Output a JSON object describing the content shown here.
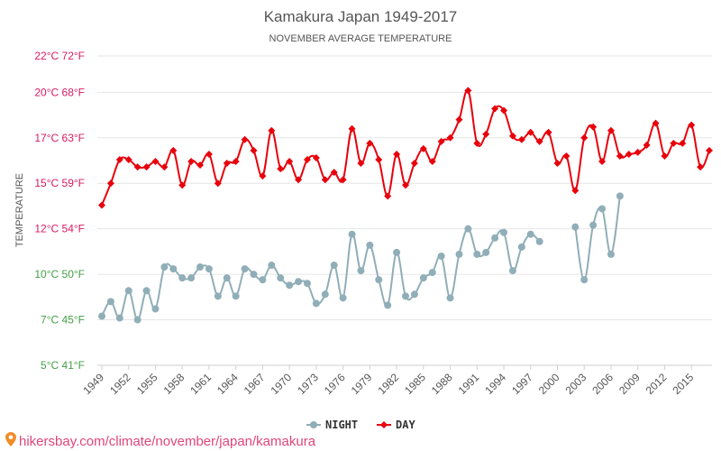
{
  "chart_data": {
    "type": "line",
    "title": "Kamakura Japan 1949-2017",
    "subtitle": "NOVEMBER AVERAGE TEMPERATURE",
    "ylabel": "TEMPERATURE",
    "ylim": [
      5,
      22
    ],
    "yticks": [
      {
        "value": 22,
        "label": "22°C 72°F",
        "color": "#d81b60"
      },
      {
        "value": 20,
        "label": "20°C 68°F",
        "color": "#d81b60"
      },
      {
        "value": 17.5,
        "label": "17°C 63°F",
        "color": "#d81b60"
      },
      {
        "value": 15,
        "label": "15°C 59°F",
        "color": "#d81b60"
      },
      {
        "value": 12.5,
        "label": "12°C 54°F",
        "color": "#d81b60"
      },
      {
        "value": 10,
        "label": "10°C 50°F",
        "color": "#43a047"
      },
      {
        "value": 7.5,
        "label": "7°C 45°F",
        "color": "#43a047"
      },
      {
        "value": 5,
        "label": "5°C 41°F",
        "color": "#43a047"
      }
    ],
    "xticks": [
      "1949",
      "1952",
      "1955",
      "1958",
      "1961",
      "1964",
      "1967",
      "1970",
      "1973",
      "1976",
      "1979",
      "1982",
      "1985",
      "1988",
      "1991",
      "1994",
      "1997",
      "2000",
      "2003",
      "2006",
      "2009",
      "2012",
      "2015"
    ],
    "x": [
      1949,
      1950,
      1951,
      1952,
      1953,
      1954,
      1955,
      1956,
      1957,
      1958,
      1959,
      1960,
      1961,
      1962,
      1963,
      1964,
      1965,
      1966,
      1967,
      1968,
      1969,
      1970,
      1971,
      1972,
      1973,
      1974,
      1975,
      1976,
      1977,
      1978,
      1979,
      1980,
      1981,
      1982,
      1983,
      1984,
      1985,
      1986,
      1987,
      1988,
      1989,
      1990,
      1991,
      1992,
      1993,
      1994,
      1995,
      1996,
      1997,
      1998,
      1999,
      2000,
      2001,
      2002,
      2003,
      2004,
      2005,
      2006,
      2007,
      2008,
      2009,
      2010,
      2011,
      2012,
      2013,
      2014,
      2015,
      2016,
      2017
    ],
    "series": [
      {
        "name": "NIGHT",
        "color": "#90aeb8",
        "values": [
          7.7,
          8.5,
          7.6,
          9.1,
          7.5,
          9.1,
          8.1,
          10.4,
          10.3,
          9.8,
          9.8,
          10.4,
          10.3,
          8.8,
          9.8,
          8.8,
          10.3,
          10.0,
          9.7,
          10.5,
          9.8,
          9.4,
          9.6,
          9.5,
          8.4,
          8.9,
          10.5,
          8.7,
          12.2,
          10.2,
          11.6,
          9.7,
          8.3,
          11.2,
          8.8,
          8.9,
          9.8,
          10.1,
          11.0,
          8.7,
          11.1,
          12.5,
          11.1,
          11.2,
          12.0,
          12.3,
          10.2,
          11.5,
          12.2,
          11.8,
          null,
          null,
          null,
          12.6,
          9.7,
          12.7,
          13.6,
          11.1,
          14.3,
          null,
          null,
          null,
          null,
          null,
          null,
          null,
          null,
          null,
          null
        ]
      },
      {
        "name": "DAY",
        "color": "#e8000b",
        "values": [
          13.8,
          15.0,
          16.3,
          16.3,
          15.9,
          15.9,
          16.2,
          15.9,
          16.8,
          14.9,
          16.2,
          16.0,
          16.6,
          15.0,
          16.1,
          16.2,
          17.4,
          16.8,
          15.4,
          17.9,
          15.8,
          16.2,
          15.2,
          16.3,
          16.4,
          15.2,
          15.6,
          15.2,
          18.0,
          16.1,
          17.2,
          16.3,
          14.3,
          16.6,
          14.9,
          16.1,
          16.9,
          16.2,
          17.3,
          17.5,
          18.5,
          20.1,
          17.2,
          17.7,
          19.1,
          19.0,
          17.6,
          17.4,
          17.8,
          17.3,
          17.8,
          16.1,
          16.5,
          14.6,
          17.5,
          18.1,
          16.2,
          17.9,
          16.5,
          16.6,
          16.7,
          17.1,
          18.3,
          16.5,
          17.2,
          17.2,
          18.2,
          15.9,
          16.8
        ]
      }
    ],
    "legend_position": "bottom-center",
    "grid": true
  },
  "footer": {
    "url": "hikersbay.com/climate/november/japan/kamakura",
    "icon": "location-pin-icon",
    "color": "#e0457b"
  }
}
